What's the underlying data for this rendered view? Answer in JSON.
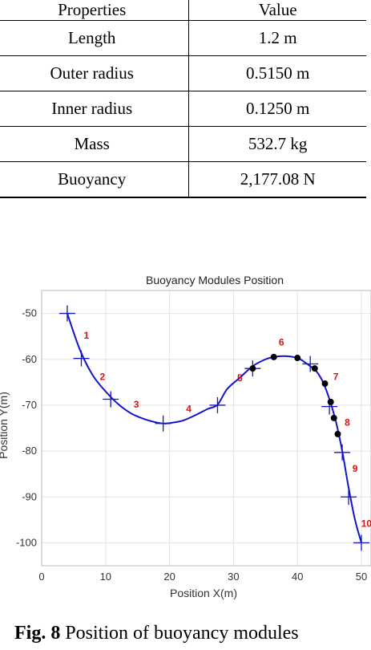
{
  "table": {
    "header": {
      "property": "Properties",
      "value": "Value"
    },
    "rows": [
      {
        "property": "Length",
        "value": "1.2 m"
      },
      {
        "property": "Outer radius",
        "value": "0.5150 m"
      },
      {
        "property": "Inner radius",
        "value": "0.1250 m"
      },
      {
        "property": "Mass",
        "value": "532.7 kg"
      },
      {
        "property": "Buoyancy",
        "value": "2,177.08 N"
      }
    ]
  },
  "chart_data": {
    "type": "line",
    "title": "Buoyancy Modules Position",
    "xlabel": "Position X(m)",
    "ylabel": "Position Y(m)",
    "xlim": [
      0,
      50
    ],
    "ylim": [
      -105,
      -45
    ],
    "xticks": [
      0,
      10,
      20,
      30,
      40,
      50
    ],
    "yticks": [
      -50,
      -60,
      -70,
      -80,
      -90,
      -100
    ],
    "grid": true,
    "line_color": "#1414c8",
    "label_color": "#e01010",
    "curve": {
      "x": [
        4,
        6,
        8,
        10,
        12,
        14,
        16,
        18,
        19,
        20,
        22,
        24,
        26,
        27.5,
        29,
        31,
        33,
        35,
        36.3,
        38,
        40,
        41,
        42,
        43,
        44,
        45,
        46,
        47,
        48,
        49,
        50
      ],
      "y": [
        -50,
        -58,
        -63.5,
        -67,
        -69.8,
        -71.8,
        -73,
        -73.8,
        -74,
        -73.9,
        -73.4,
        -72.2,
        -70.8,
        -69.9,
        -66.5,
        -64,
        -61.5,
        -60,
        -59.5,
        -59.3,
        -59.7,
        -60.5,
        -61.5,
        -62.7,
        -65,
        -68.7,
        -73.5,
        -80,
        -88,
        -95,
        -100
      ]
    },
    "cross_markers": {
      "x": [
        4,
        6.2,
        10.8,
        19,
        27.5,
        33,
        42,
        45,
        47,
        48,
        50
      ],
      "y": [
        -50,
        -59.8,
        -68.7,
        -74,
        -70,
        -62,
        -61,
        -70.3,
        -80.3,
        -90,
        -100
      ]
    },
    "dot_markers": {
      "x": [
        33,
        36.3,
        40,
        42.7,
        44.3,
        45.2,
        45.7,
        46.3
      ],
      "y": [
        -62,
        -59.5,
        -59.7,
        -62,
        -65.3,
        -69.3,
        -72.8,
        -76.3
      ]
    },
    "module_labels": [
      {
        "text": "1",
        "x": 7,
        "y": -55.5
      },
      {
        "text": "2",
        "x": 9.5,
        "y": -64.5
      },
      {
        "text": "3",
        "x": 14.8,
        "y": -70.5
      },
      {
        "text": "4",
        "x": 23,
        "y": -71.5
      },
      {
        "text": "5",
        "x": 31,
        "y": -64.8
      },
      {
        "text": "6",
        "x": 37.5,
        "y": -57
      },
      {
        "text": "7",
        "x": 46,
        "y": -64.5
      },
      {
        "text": "8",
        "x": 47.8,
        "y": -74.5
      },
      {
        "text": "9",
        "x": 49,
        "y": -84.5
      },
      {
        "text": "10",
        "x": 50.8,
        "y": -96.5
      }
    ]
  },
  "caption": {
    "label": "Fig. 8",
    "text": "Position of buoyancy modules"
  }
}
